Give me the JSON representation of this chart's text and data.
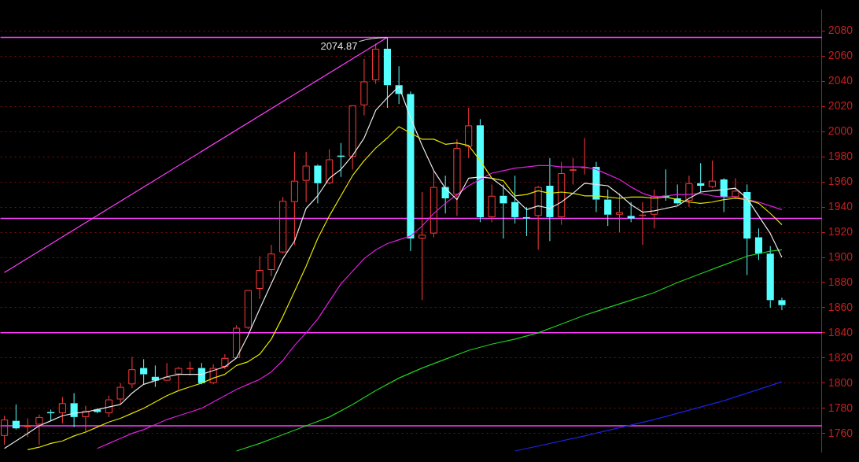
{
  "chart_data": {
    "type": "candlestick",
    "categories": [
      null,
      null,
      null,
      null,
      null,
      null,
      null,
      null,
      null,
      null,
      null,
      null,
      null,
      null,
      null,
      null,
      null,
      null,
      null,
      null,
      null,
      null,
      null,
      null,
      null,
      null,
      null,
      null,
      null,
      null,
      null,
      null,
      null,
      null,
      null,
      null,
      null,
      null,
      null,
      null,
      null,
      null,
      null,
      null,
      null,
      null,
      null,
      null,
      null,
      null,
      null,
      null,
      null,
      null,
      null,
      null,
      null,
      null,
      null,
      null,
      null,
      null,
      null,
      null,
      null,
      null,
      null,
      null
    ],
    "ohlc": [
      [
        1758,
        1774,
        1751,
        1771
      ],
      [
        1770,
        1783,
        1763,
        1764
      ],
      [
        1765,
        1772,
        1757,
        1766
      ],
      [
        1767,
        1775,
        1751,
        1773
      ],
      [
        1777,
        1779,
        1770,
        1776
      ],
      [
        1776,
        1789,
        1768,
        1784
      ],
      [
        1784,
        1792,
        1765,
        1773
      ],
      [
        1773,
        1782,
        1761,
        1778
      ],
      [
        1779,
        1780,
        1776,
        1777
      ],
      [
        1776,
        1790,
        1773,
        1787
      ],
      [
        1787,
        1800,
        1783,
        1797
      ],
      [
        1799,
        1821,
        1796,
        1811
      ],
      [
        1812,
        1819,
        1799,
        1807
      ],
      [
        1805,
        1814,
        1797,
        1802
      ],
      [
        1802,
        1816,
        1802,
        1805
      ],
      [
        1807,
        1813,
        1795,
        1812
      ],
      [
        1811,
        1817,
        1806,
        1812
      ],
      [
        1812,
        1816,
        1799,
        1800
      ],
      [
        1800,
        1815,
        1799,
        1812
      ],
      [
        1813,
        1823,
        1811,
        1820
      ],
      [
        1820,
        1846,
        1820,
        1844
      ],
      [
        1844,
        1874,
        1843,
        1874
      ],
      [
        1875,
        1901,
        1867,
        1890
      ],
      [
        1890,
        1910,
        1885,
        1903
      ],
      [
        1904,
        1948,
        1903,
        1945
      ],
      [
        1944,
        1984,
        1910,
        1961
      ],
      [
        1961,
        1984,
        1944,
        1973
      ],
      [
        1973,
        1974,
        1943,
        1959
      ],
      [
        1959,
        1986,
        1958,
        1978
      ],
      [
        1981,
        1991,
        1964,
        1980
      ],
      [
        1980,
        2021,
        1970,
        2021
      ],
      [
        2021,
        2058,
        2013,
        2040
      ],
      [
        2041,
        2070,
        2038,
        2066
      ],
      [
        2066,
        2074.87,
        2019,
        2037
      ],
      [
        2037,
        2052,
        2022,
        2030
      ],
      [
        2030,
        2032,
        1905,
        1915
      ],
      [
        1915,
        1952,
        1866,
        1918
      ],
      [
        1919,
        1969,
        1916,
        1956
      ],
      [
        1956,
        1965,
        1935,
        1947
      ],
      [
        1950,
        1994,
        1933,
        1987
      ],
      [
        1988,
        2019,
        1979,
        2005
      ],
      [
        2005,
        2010,
        1928,
        1932
      ],
      [
        1932,
        1958,
        1928,
        1949
      ],
      [
        1949,
        1958,
        1915,
        1943
      ],
      [
        1944,
        1965,
        1927,
        1932
      ],
      [
        1932,
        1940,
        1917,
        1931
      ],
      [
        1933,
        1957,
        1906,
        1956
      ],
      [
        1957,
        1979,
        1913,
        1932
      ],
      [
        1932,
        1976,
        1926,
        1967
      ],
      [
        1969,
        1979,
        1958,
        1970
      ],
      [
        1971,
        1995,
        1966,
        1972
      ],
      [
        1972,
        1976,
        1936,
        1946
      ],
      [
        1946,
        1954,
        1925,
        1934
      ],
      [
        1934,
        1951,
        1920,
        1936
      ],
      [
        1933,
        1944,
        1928,
        1931
      ],
      [
        1933,
        1944,
        1910,
        1934
      ],
      [
        1934,
        1954,
        1923,
        1949
      ],
      [
        1949,
        1970,
        1945,
        1948
      ],
      [
        1947,
        1958,
        1942,
        1943
      ],
      [
        1945,
        1965,
        1940,
        1959
      ],
      [
        1959,
        1975,
        1952,
        1957
      ],
      [
        1956,
        1977,
        1955,
        1961
      ],
      [
        1962,
        1963,
        1936,
        1948
      ],
      [
        1948,
        1963,
        1947,
        1953
      ],
      [
        1952,
        1958,
        1886,
        1915
      ],
      [
        1916,
        1923,
        1898,
        1903
      ],
      [
        1903,
        1909,
        1860,
        1866
      ],
      [
        1866,
        1868,
        1858,
        1862
      ]
    ],
    "colors": [
      "#ff3c3c",
      "#54ffff",
      "#ff3c3c",
      "#ff3c3c",
      "#54ffff",
      "#ff3c3c",
      "#54ffff",
      "#ff3c3c",
      "#54ffff",
      "#ff3c3c",
      "#ff3c3c",
      "#ff3c3c",
      "#54ffff",
      "#54ffff",
      "#ff3c3c",
      "#ff3c3c",
      "#ff3c3c",
      "#54ffff",
      "#ff3c3c",
      "#ff3c3c",
      "#ff3c3c",
      "#ff3c3c",
      "#ff3c3c",
      "#ff3c3c",
      "#ff3c3c",
      "#ff3c3c",
      "#ff3c3c",
      "#54ffff",
      "#ff3c3c",
      "#54ffff",
      "#ff3c3c",
      "#ff3c3c",
      "#ff3c3c",
      "#54ffff",
      "#54ffff",
      "#54ffff",
      "#ff3c3c",
      "#ff3c3c",
      "#54ffff",
      "#ff3c3c",
      "#ff3c3c",
      "#54ffff",
      "#ff3c3c",
      "#54ffff",
      "#54ffff",
      "#54ffff",
      "#ff3c3c",
      "#54ffff",
      "#ff3c3c",
      "#ff3c3c",
      "#ff3c3c",
      "#54ffff",
      "#54ffff",
      "#ff3c3c",
      "#54ffff",
      "#ff3c3c",
      "#ff3c3c",
      "#54ffff",
      "#54ffff",
      "#ff3c3c",
      "#54ffff",
      "#ff3c3c",
      "#54ffff",
      "#ff3c3c",
      "#54ffff",
      "#54ffff",
      "#54ffff",
      "#54ffff"
    ],
    "series": [
      {
        "type": "line",
        "color": "#e8e8e8",
        "values": [
          1748,
          1754,
          1760,
          1766,
          1770,
          1774,
          1776,
          1777,
          1779,
          1781,
          1783,
          1792,
          1799,
          1802,
          1805,
          1807,
          1807,
          1807,
          1810,
          1813,
          1820,
          1838,
          1859,
          1879,
          1899,
          1913,
          1939,
          1949,
          1963,
          1970,
          1981,
          1995,
          2017,
          2027,
          2036,
          2011,
          1989,
          1969,
          1955,
          1946,
          1963,
          1964,
          1963,
          1956,
          1947,
          1938,
          1941,
          1939,
          1944,
          1951,
          1959,
          1958,
          1957,
          1950,
          1942,
          1936,
          1937,
          1939,
          1941,
          1947,
          1952,
          1953,
          1954,
          1955,
          1947,
          1933,
          1919,
          1900
        ]
      },
      {
        "type": "line",
        "color": "#e6e600",
        "values": [
          null,
          null,
          1747,
          1749,
          1752,
          1754,
          1758,
          1761,
          1765,
          1769,
          1772,
          1776,
          1780,
          1785,
          1790,
          1794,
          1797,
          1800,
          1804,
          1807,
          1814,
          1817,
          1823,
          1835,
          1853,
          1873,
          1893,
          1915,
          1933,
          1949,
          1965,
          1977,
          1987,
          1995,
          2004,
          1999,
          1994,
          1994,
          1990,
          1991,
          1989,
          1977,
          1963,
          1961,
          1949,
          1950,
          1953,
          1951,
          1952,
          1951,
          1949,
          1949,
          1948,
          1947,
          1948,
          1948,
          1947,
          1948,
          1946,
          1944,
          1943,
          1944,
          1946,
          1947,
          1946,
          1943,
          1935,
          1926
        ]
      },
      {
        "type": "line",
        "color": "#e020e0",
        "values": [
          null,
          null,
          null,
          null,
          null,
          null,
          null,
          null,
          1748,
          1752,
          1756,
          1760,
          1763,
          1767,
          1771,
          1774,
          1777,
          1780,
          1785,
          1790,
          1795,
          1799,
          1803,
          1809,
          1818,
          1830,
          1840,
          1851,
          1865,
          1879,
          1889,
          1899,
          1906,
          1911,
          1914,
          1917,
          1925,
          1935,
          1943,
          1950,
          1957,
          1962,
          1967,
          1969,
          1971,
          1972,
          1973,
          1973,
          1972,
          1972,
          1972,
          1970,
          1966,
          1962,
          1956,
          1951,
          1948,
          1949,
          1950,
          1950,
          1951,
          1949,
          1948,
          1948,
          1946,
          1944,
          1941,
          1938
        ]
      },
      {
        "type": "line",
        "color": "#20d020",
        "values": [
          null,
          null,
          null,
          null,
          null,
          null,
          null,
          null,
          null,
          null,
          null,
          null,
          null,
          null,
          null,
          null,
          null,
          null,
          null,
          null,
          1746,
          null,
          1752,
          null,
          1759,
          null,
          1766,
          null,
          1773,
          null,
          1783,
          null,
          1794,
          null,
          1804,
          null,
          1812,
          null,
          1819,
          null,
          1826,
          null,
          1831,
          null,
          1835,
          null,
          1840,
          null,
          1847,
          null,
          1854,
          null,
          1860,
          null,
          1866,
          null,
          1872,
          null,
          1880,
          null,
          1887,
          null,
          1894,
          null,
          1901,
          1903,
          1905,
          1906
        ]
      },
      {
        "type": "line",
        "color": "#2020e0",
        "values": [
          null,
          null,
          null,
          null,
          null,
          null,
          null,
          null,
          null,
          null,
          null,
          null,
          null,
          null,
          null,
          null,
          null,
          null,
          null,
          null,
          null,
          null,
          null,
          null,
          null,
          null,
          null,
          null,
          null,
          null,
          null,
          null,
          null,
          null,
          null,
          null,
          null,
          null,
          null,
          null,
          null,
          null,
          null,
          null,
          1746,
          null,
          null,
          null,
          null,
          null,
          1758,
          null,
          null,
          null,
          null,
          null,
          1771,
          null,
          null,
          null,
          null,
          null,
          1786,
          null,
          null,
          null,
          null,
          1801
        ]
      },
      {
        "type": "line",
        "color": "#ff40ff",
        "values": [
          1888,
          null,
          null,
          null,
          null,
          null,
          null,
          null,
          null,
          null,
          null,
          null,
          null,
          null,
          null,
          null,
          null,
          null,
          null,
          null,
          null,
          null,
          null,
          null,
          null,
          null,
          null,
          null,
          null,
          null,
          null,
          null,
          null,
          2075,
          null,
          null,
          null,
          null,
          null,
          null,
          null,
          null,
          null,
          null,
          null,
          null,
          null,
          null,
          null,
          null,
          null,
          null,
          null,
          null,
          null,
          null,
          null,
          null,
          null,
          null,
          null,
          null,
          null,
          null,
          null,
          null,
          null,
          null
        ]
      }
    ],
    "ylim": [
      1745,
      2097
    ],
    "yticks": [
      1760,
      1780,
      1800,
      1820,
      1840,
      1860,
      1880,
      1900,
      1920,
      1940,
      1960,
      1980,
      2000,
      2020,
      2040,
      2060,
      2080
    ],
    "grid": "y",
    "tick_labels": "y",
    "legend": false,
    "ref_lines": [
      {
        "axis": "y",
        "value": 2075,
        "color": "#ff40ff"
      },
      {
        "axis": "y",
        "value": 1931,
        "color": "#ff40ff"
      },
      {
        "axis": "y",
        "value": 1840,
        "color": "#ff40ff"
      },
      {
        "axis": "y",
        "value": 1766,
        "color": "#ff40ff"
      }
    ],
    "annotations": [
      {
        "text": "2074.87",
        "y": 2074.87
      }
    ]
  }
}
